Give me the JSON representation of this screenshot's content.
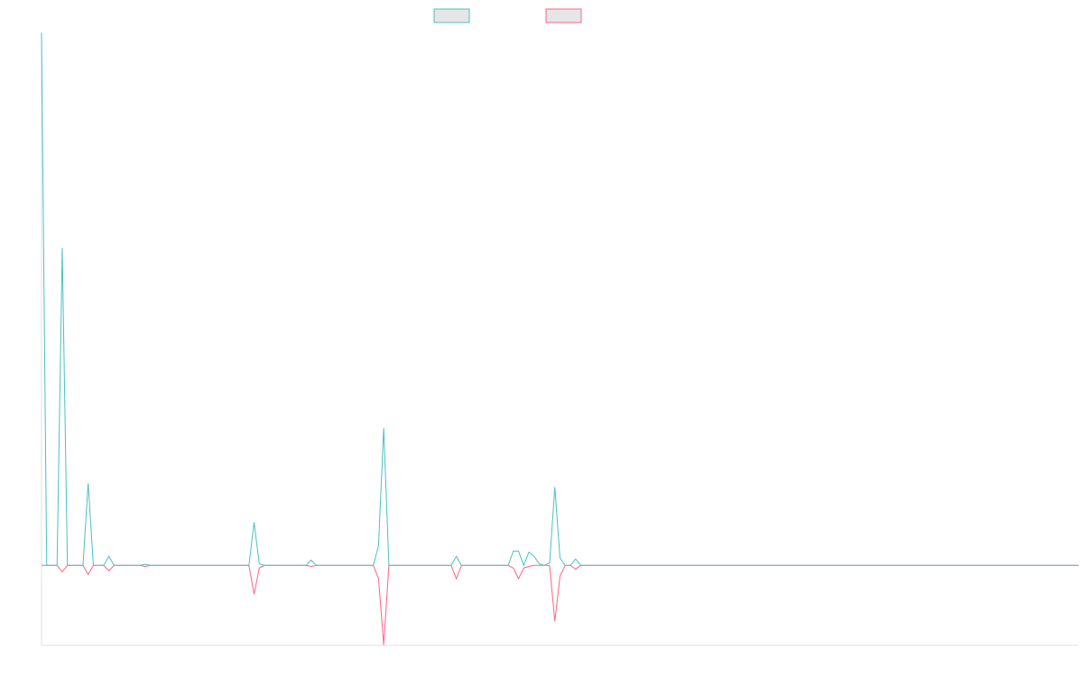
{
  "chart_data": {
    "type": "line",
    "ylim": [
      -15,
      100
    ],
    "categories": [
      null,
      null,
      null,
      null,
      null,
      null,
      null,
      null,
      null,
      null,
      null,
      null,
      null,
      null,
      null,
      null,
      null,
      null,
      null,
      null,
      null,
      null,
      null,
      null,
      null,
      null,
      null,
      null,
      null,
      null,
      null,
      null,
      null,
      null,
      null,
      null,
      null,
      null,
      null,
      null,
      null,
      null,
      null,
      null,
      null,
      null,
      null,
      null,
      null,
      null,
      null,
      null,
      null,
      null,
      null,
      null,
      null,
      null,
      null,
      null,
      null,
      null,
      null,
      null,
      null,
      null,
      null,
      null,
      null,
      null,
      null,
      null,
      null,
      null,
      null,
      null,
      null,
      null,
      null,
      null,
      null,
      null,
      null,
      null,
      null,
      null,
      null,
      null,
      null,
      null,
      null,
      null,
      null,
      null,
      null,
      null,
      null,
      null,
      null,
      null,
      null,
      null,
      null,
      null,
      null,
      null,
      null,
      null,
      null,
      null,
      null,
      null,
      null,
      null,
      null,
      null,
      null,
      null,
      null,
      null,
      null,
      null,
      null,
      null,
      null,
      null,
      null,
      null,
      null,
      null,
      null,
      null,
      null,
      null,
      null,
      null,
      null,
      null,
      null,
      null,
      null,
      null,
      null,
      null,
      null,
      null,
      null,
      null,
      null,
      null,
      null,
      null,
      null,
      null,
      null,
      null,
      null,
      null,
      null,
      null,
      null,
      null,
      null,
      null,
      null,
      null,
      null,
      null,
      null,
      null,
      null,
      null,
      null,
      null,
      null,
      null,
      null,
      null,
      null,
      null,
      null,
      null,
      null,
      null,
      null,
      null,
      null,
      null,
      null,
      null,
      null,
      null,
      null,
      null,
      null,
      null,
      null,
      null,
      null,
      null,
      null
    ],
    "series": [
      {
        "color": "#4bc0c0",
        "values": [
          100,
          0,
          0,
          0,
          59.6,
          0,
          0,
          0,
          0,
          15.4,
          0,
          0,
          0,
          1.7,
          0,
          0,
          0,
          0,
          0,
          0,
          0.2,
          0,
          0,
          0,
          0,
          0,
          0,
          0,
          0,
          0,
          0,
          0,
          0,
          0,
          0,
          0,
          0,
          0,
          0,
          0,
          0,
          8.1,
          0.3,
          0,
          0,
          0,
          0,
          0,
          0,
          0,
          0,
          0,
          1,
          0,
          0,
          0,
          0,
          0,
          0,
          0,
          0,
          0,
          0,
          0,
          0,
          3.7,
          25.8,
          0,
          0,
          0,
          0,
          0,
          0,
          0,
          0,
          0,
          0,
          0,
          0,
          0,
          1.7,
          0,
          0,
          0,
          0,
          0,
          0,
          0,
          0,
          0,
          0,
          2.7,
          2.7,
          0,
          2.5,
          1.7,
          0.3,
          0,
          0.5,
          14.7,
          1.4,
          0,
          0,
          1.2,
          0,
          0,
          0,
          0,
          0,
          0,
          0,
          0,
          0,
          0,
          0,
          0,
          0,
          0,
          0,
          0,
          0,
          0,
          0,
          0,
          0,
          0,
          0,
          0,
          0,
          0,
          0,
          0,
          0,
          0,
          0,
          0,
          0,
          0,
          0,
          0,
          0,
          0,
          0,
          0,
          0,
          0,
          0,
          0,
          0,
          0,
          0,
          0,
          0,
          0,
          0,
          0,
          0,
          0,
          0,
          0,
          0,
          0,
          0,
          0,
          0,
          0,
          0,
          0,
          0,
          0,
          0,
          0,
          0,
          0,
          0,
          0,
          0,
          0,
          0,
          0,
          0,
          0,
          0,
          0,
          0,
          0,
          0,
          0,
          0,
          0,
          0,
          0,
          0,
          0,
          0,
          0,
          0,
          0,
          0,
          0,
          0
        ]
      },
      {
        "color": "#ff6384",
        "values": [
          0,
          0,
          0,
          0,
          -1.2,
          0,
          0,
          0,
          0,
          -1.7,
          0,
          0,
          0,
          -1,
          0,
          0,
          0,
          0,
          0,
          0,
          -0.2,
          0,
          0,
          0,
          0,
          0,
          0,
          0,
          0,
          0,
          0,
          0,
          0,
          0,
          0,
          0,
          0,
          0,
          0,
          0,
          0,
          -5.4,
          -0.5,
          0,
          0,
          0,
          0,
          0,
          0,
          0,
          0,
          0,
          -0.2,
          0,
          0,
          0,
          0,
          0,
          0,
          0,
          0,
          0,
          0,
          0,
          0,
          -2.5,
          -14.9,
          0,
          0,
          0,
          0,
          0,
          0,
          0,
          0,
          0,
          0,
          0,
          0,
          0,
          -2.5,
          0,
          0,
          0,
          0,
          0,
          0,
          0,
          0,
          0,
          0,
          -0.5,
          -2.5,
          -0.5,
          -0.2,
          0,
          0,
          0,
          0,
          -10.5,
          -2,
          0,
          0,
          -0.7,
          0,
          0,
          0,
          0,
          0,
          0,
          0,
          0,
          0,
          0,
          0,
          0,
          0,
          0,
          0,
          0,
          0,
          0,
          0,
          0,
          0,
          0,
          0,
          0,
          0,
          0,
          0,
          0,
          0,
          0,
          0,
          0,
          0,
          0,
          0,
          0,
          0,
          0,
          0,
          0,
          0,
          0,
          0,
          0,
          0,
          0,
          0,
          0,
          0,
          0,
          0,
          0,
          0,
          0,
          0,
          0,
          0,
          0,
          0,
          0,
          0,
          0,
          0,
          0,
          0,
          0,
          0,
          0,
          0,
          0,
          0,
          0,
          0,
          0,
          0,
          0,
          0,
          0,
          0,
          0,
          0,
          0,
          0,
          0,
          0,
          0,
          0,
          0,
          0,
          0,
          0,
          0,
          0,
          0,
          0,
          0,
          0
        ]
      }
    ]
  }
}
